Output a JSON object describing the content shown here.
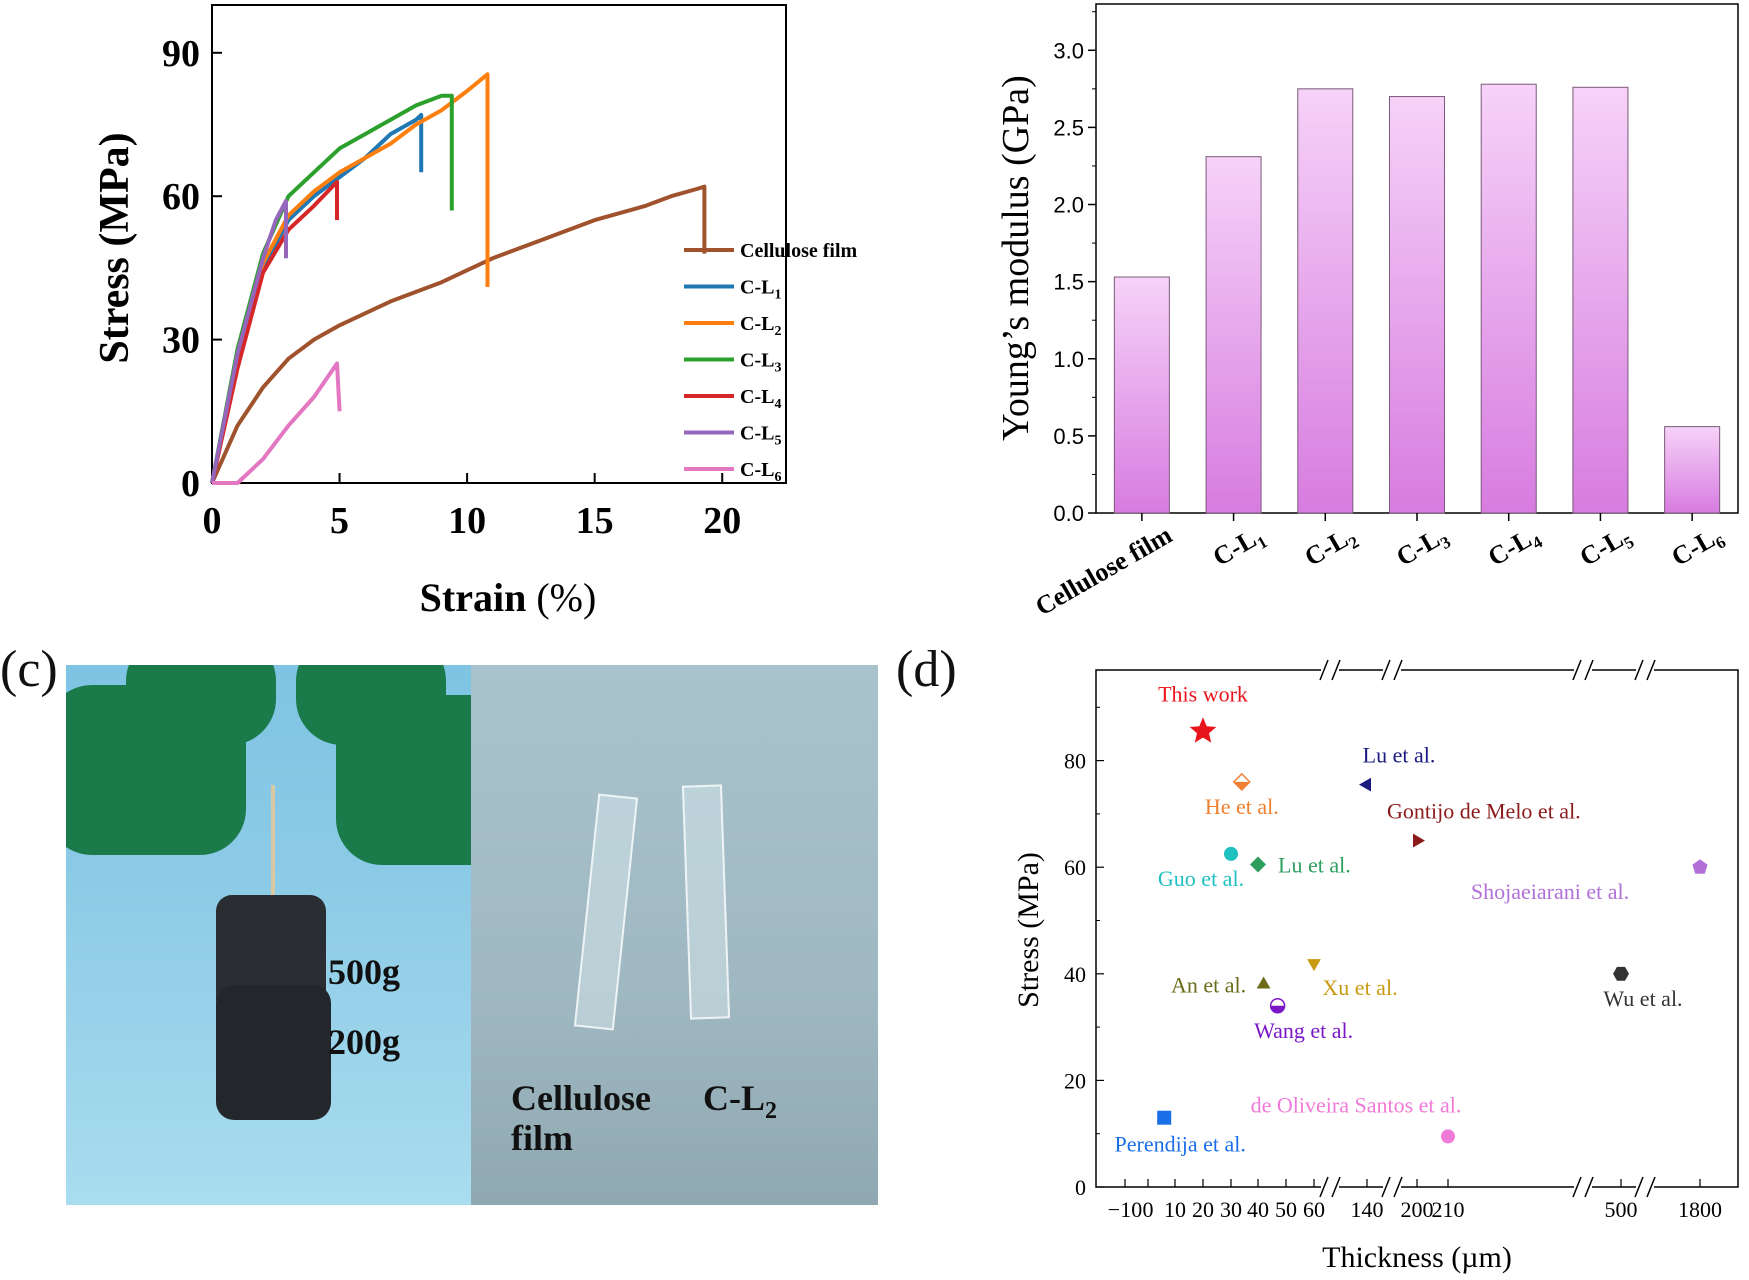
{
  "panels": {
    "c_tag": "(c)",
    "d_tag": "(d)"
  },
  "chart_a": {
    "type": "line",
    "xlabel_main": "Strain",
    "xlabel_unit": "(%)",
    "ylabel": "Stress (MPa)",
    "xlim": [
      0,
      22.5
    ],
    "ylim": [
      0,
      100
    ],
    "xticks": [
      "0",
      "5",
      "10",
      "15",
      "20"
    ],
    "yticks": [
      "0",
      "30",
      "60",
      "90"
    ],
    "legend_placement": "right",
    "series": [
      {
        "name": "Cellulose film",
        "color": "#a0522d",
        "points": [
          [
            0,
            0
          ],
          [
            1,
            12
          ],
          [
            2,
            20
          ],
          [
            3,
            26
          ],
          [
            4,
            30
          ],
          [
            5,
            33
          ],
          [
            7,
            38
          ],
          [
            9,
            42
          ],
          [
            11,
            47
          ],
          [
            13,
            51
          ],
          [
            15,
            55
          ],
          [
            17,
            58
          ],
          [
            18,
            60
          ],
          [
            19,
            61.5
          ],
          [
            19.3,
            62
          ],
          [
            19.3,
            48
          ]
        ]
      },
      {
        "name": "C-L1",
        "color": "#1f77b4",
        "points": [
          [
            0,
            0
          ],
          [
            1,
            25
          ],
          [
            2,
            45
          ],
          [
            3,
            55
          ],
          [
            4,
            60
          ],
          [
            5,
            64
          ],
          [
            6,
            68
          ],
          [
            7,
            73
          ],
          [
            8,
            76
          ],
          [
            8.2,
            77
          ],
          [
            8.2,
            65
          ]
        ]
      },
      {
        "name": "C-L2",
        "color": "#ff7f0e",
        "points": [
          [
            0,
            0
          ],
          [
            1,
            26
          ],
          [
            2,
            46
          ],
          [
            3,
            56
          ],
          [
            4,
            61
          ],
          [
            5,
            65
          ],
          [
            6,
            68
          ],
          [
            7,
            71
          ],
          [
            8,
            75
          ],
          [
            9,
            78
          ],
          [
            10,
            82
          ],
          [
            10.8,
            85.5
          ],
          [
            10.8,
            41
          ]
        ]
      },
      {
        "name": "C-L3",
        "color": "#2ca02c",
        "points": [
          [
            0,
            0
          ],
          [
            1,
            28
          ],
          [
            2,
            48
          ],
          [
            3,
            60
          ],
          [
            4,
            65
          ],
          [
            5,
            70
          ],
          [
            6,
            73
          ],
          [
            7,
            76
          ],
          [
            8,
            79
          ],
          [
            9,
            81
          ],
          [
            9.4,
            81
          ],
          [
            9.4,
            57
          ]
        ]
      },
      {
        "name": "C-L4",
        "color": "#d62728",
        "points": [
          [
            0,
            0
          ],
          [
            1,
            24
          ],
          [
            2,
            44
          ],
          [
            3,
            53
          ],
          [
            4,
            58
          ],
          [
            4.9,
            63
          ],
          [
            4.9,
            55
          ]
        ]
      },
      {
        "name": "C-L5",
        "color": "#9467bd",
        "points": [
          [
            0,
            0
          ],
          [
            1,
            27
          ],
          [
            2,
            47
          ],
          [
            2.5,
            55
          ],
          [
            2.9,
            59
          ],
          [
            2.9,
            47
          ]
        ]
      },
      {
        "name": "C-L6",
        "color": "#e377c2",
        "points": [
          [
            0,
            0
          ],
          [
            0.5,
            0
          ],
          [
            1,
            0
          ],
          [
            2,
            5
          ],
          [
            3,
            12
          ],
          [
            4,
            18
          ],
          [
            4.9,
            25
          ],
          [
            5,
            15
          ]
        ]
      }
    ],
    "legend": [
      {
        "main": "Cellulose film",
        "sub": ""
      },
      {
        "main": "C-L",
        "sub": "1"
      },
      {
        "main": "C-L",
        "sub": "2"
      },
      {
        "main": "C-L",
        "sub": "3"
      },
      {
        "main": "C-L",
        "sub": "4"
      },
      {
        "main": "C-L",
        "sub": "5"
      },
      {
        "main": "C-L",
        "sub": "6"
      }
    ]
  },
  "chart_b": {
    "type": "bar",
    "ylabel": "Young’s modulus (GPa)",
    "ylim": [
      0,
      3.3
    ],
    "yticks": [
      "0.0",
      "0.5",
      "1.0",
      "1.5",
      "2.0",
      "2.5",
      "3.0"
    ],
    "categories": [
      {
        "main": "Cellulose film",
        "sub": ""
      },
      {
        "main": "C-L",
        "sub": "1"
      },
      {
        "main": "C-L",
        "sub": "2"
      },
      {
        "main": "C-L",
        "sub": "3"
      },
      {
        "main": "C-L",
        "sub": "4"
      },
      {
        "main": "C-L",
        "sub": "5"
      },
      {
        "main": "C-L",
        "sub": "6"
      }
    ],
    "values": [
      1.53,
      2.31,
      2.75,
      2.7,
      2.78,
      2.76,
      0.56
    ],
    "bar_color_top": "#f6d2f8",
    "bar_color_bottom": "#d77ce0"
  },
  "photo": {
    "weight_top": "500g",
    "weight_bottom": "200g",
    "film_label_line1": "Cellulose",
    "film_label_line2": "film",
    "cl2_main": "C-L",
    "cl2_sub": "2"
  },
  "chart_d": {
    "type": "scatter",
    "xlabel": "Thickness (µm)",
    "ylabel": "Stress (MPa)",
    "ylim": [
      0,
      97
    ],
    "yticks": [
      "0",
      "20",
      "40",
      "60",
      "80"
    ],
    "xticks": [
      "−10",
      "0",
      "10",
      "20",
      "30",
      "40",
      "50",
      "60",
      "140",
      "200",
      "210",
      "500",
      "1800"
    ],
    "axis_breaks": [
      "60–140",
      "140–200",
      "210–500",
      "500–1800"
    ],
    "points": [
      {
        "label": "This work",
        "x": 20,
        "y": 85.5,
        "marker": "star",
        "color": "#e8141b"
      },
      {
        "label": "He et al.",
        "x": 34,
        "y": 76,
        "marker": "diamond-half",
        "color": "#f08030"
      },
      {
        "label": "Lu et al.",
        "x": 140,
        "y": 75.5,
        "marker": "triangle-left",
        "color": "#1a1a80"
      },
      {
        "label": "Gontijo de Melo et al.",
        "x": 200,
        "y": 65,
        "marker": "triangle-right",
        "color": "#8b1a1a"
      },
      {
        "label": "Guo et al.",
        "x": 30,
        "y": 62.5,
        "marker": "circle",
        "color": "#20c0c0"
      },
      {
        "label": "Lu et al.",
        "x": 40,
        "y": 60.5,
        "marker": "diamond",
        "color": "#2e9e5e"
      },
      {
        "label": "Shojaeiarani et al.",
        "x": 1800,
        "y": 60,
        "marker": "pentagon",
        "color": "#b070d8"
      },
      {
        "label": "Xu et al.",
        "x": 60,
        "y": 42,
        "marker": "triangle-down",
        "color": "#c99a10"
      },
      {
        "label": "Wu et al.",
        "x": 500,
        "y": 40,
        "marker": "hexagon",
        "color": "#333333"
      },
      {
        "label": "An et al.",
        "x": 42,
        "y": 38,
        "marker": "triangle-up",
        "color": "#6b6b1a"
      },
      {
        "label": "Wang et al.",
        "x": 47,
        "y": 34,
        "marker": "circle-half",
        "color": "#7a18c8"
      },
      {
        "label": "de Oliveira Santos et al.",
        "x": 210,
        "y": 9.5,
        "marker": "circle",
        "color": "#f07ad8"
      },
      {
        "label": "Perendija et al.",
        "x": 6,
        "y": 13,
        "marker": "square",
        "color": "#1a6ee8"
      }
    ]
  }
}
